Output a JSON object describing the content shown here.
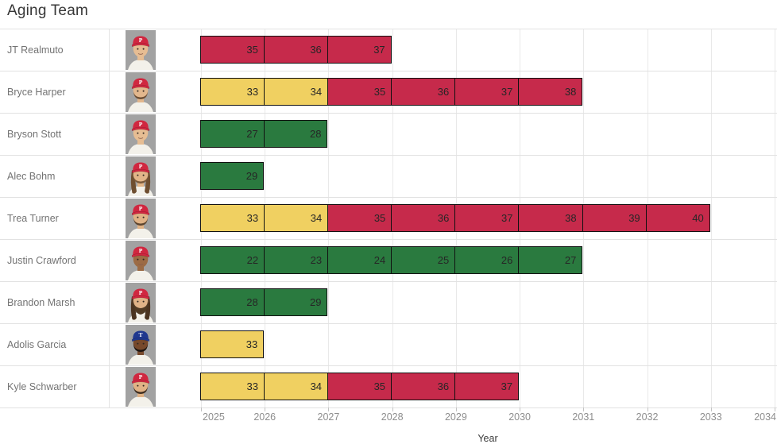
{
  "title": "Aging Team",
  "axis": {
    "label": "Year",
    "years": [
      2025,
      2026,
      2027,
      2028,
      2029,
      2030,
      2031,
      2032,
      2033,
      2034
    ]
  },
  "colors": {
    "red": "#c62a4b",
    "yellow": "#f0d061",
    "green": "#2a7a3f",
    "bar_border": "#111111",
    "grid": "#e9e9e9",
    "title_text": "#373737",
    "label_text": "#737373",
    "axis_text": "#8e8e8e"
  },
  "chart_data": {
    "type": "bar",
    "variant": "gantt",
    "title": "Aging Team",
    "xlabel": "Year",
    "ylabel": "",
    "x_range": [
      2025,
      2034
    ],
    "x_ticks": [
      2025,
      2026,
      2027,
      2028,
      2029,
      2030,
      2031,
      2032,
      2033,
      2034
    ],
    "grid": true,
    "bar_colors": {
      "green": "#2a7a3f",
      "yellow": "#f0d061",
      "red": "#c62a4b"
    },
    "players": [
      {
        "name": "JT Realmuto",
        "start_year": 2025,
        "end_year": 2028,
        "ages": [
          35,
          36,
          37
        ],
        "segment_colors": [
          "red",
          "red",
          "red"
        ],
        "avatar": {
          "cap": "#d02740",
          "letter": "P",
          "skin": "#e6bd93",
          "hair": "#4f3b28",
          "beard": null,
          "longHair": false,
          "bigBeard": false
        }
      },
      {
        "name": "Bryce Harper",
        "start_year": 2025,
        "end_year": 2031,
        "ages": [
          33,
          34,
          35,
          36,
          37,
          38
        ],
        "segment_colors": [
          "yellow",
          "yellow",
          "red",
          "red",
          "red",
          "red"
        ],
        "avatar": {
          "cap": "#d02740",
          "letter": "P",
          "skin": "#e2b78d",
          "hair": "#5a4530",
          "beard": "#6e4f35",
          "longHair": false,
          "bigBeard": false
        }
      },
      {
        "name": "Bryson Stott",
        "start_year": 2025,
        "end_year": 2027,
        "ages": [
          27,
          28
        ],
        "segment_colors": [
          "green",
          "green"
        ],
        "avatar": {
          "cap": "#d02740",
          "letter": "P",
          "skin": "#e6bd93",
          "hair": "#6b4f33",
          "beard": null,
          "longHair": false,
          "bigBeard": false
        }
      },
      {
        "name": "Alec Bohm",
        "start_year": 2025,
        "end_year": 2026,
        "ages": [
          29
        ],
        "segment_colors": [
          "green"
        ],
        "avatar": {
          "cap": "#d02740",
          "letter": "P",
          "skin": "#e2b588",
          "hair": "#6e4e30",
          "beard": "#7a5a3c",
          "longHair": true,
          "bigBeard": false
        }
      },
      {
        "name": "Trea Turner",
        "start_year": 2025,
        "end_year": 2033,
        "ages": [
          33,
          34,
          35,
          36,
          37,
          38,
          39,
          40
        ],
        "segment_colors": [
          "yellow",
          "yellow",
          "red",
          "red",
          "red",
          "red",
          "red",
          "red"
        ],
        "avatar": {
          "cap": "#d02740",
          "letter": "P",
          "skin": "#e0b285",
          "hair": "#4f3b28",
          "beard": "#5d452f",
          "longHair": false,
          "bigBeard": false
        }
      },
      {
        "name": "Justin Crawford",
        "start_year": 2025,
        "end_year": 2031,
        "ages": [
          22,
          23,
          24,
          25,
          26,
          27
        ],
        "segment_colors": [
          "green",
          "green",
          "green",
          "green",
          "green",
          "green"
        ],
        "avatar": {
          "cap": "#d02740",
          "letter": "P",
          "skin": "#9c6b44",
          "hair": "#1e1510",
          "beard": null,
          "longHair": false,
          "bigBeard": false
        }
      },
      {
        "name": "Brandon Marsh",
        "start_year": 2025,
        "end_year": 2027,
        "ages": [
          28,
          29
        ],
        "segment_colors": [
          "green",
          "green"
        ],
        "avatar": {
          "cap": "#d02740",
          "letter": "P",
          "skin": "#dfb287",
          "hair": "#4a3320",
          "beard": "#503a24",
          "longHair": true,
          "bigBeard": true
        }
      },
      {
        "name": "Adolis Garcia",
        "start_year": 2025,
        "end_year": 2026,
        "ages": [
          33
        ],
        "segment_colors": [
          "yellow"
        ],
        "avatar": {
          "cap": "#20388f",
          "letter": "T",
          "skin": "#77492c",
          "hair": "#141010",
          "beard": "#1c1410",
          "longHair": false,
          "bigBeard": false
        }
      },
      {
        "name": "Kyle Schwarber",
        "start_year": 2025,
        "end_year": 2030,
        "ages": [
          33,
          34,
          35,
          36,
          37
        ],
        "segment_colors": [
          "yellow",
          "yellow",
          "red",
          "red",
          "red"
        ],
        "avatar": {
          "cap": "#d02740",
          "letter": "P",
          "skin": "#e0b285",
          "hair": "#2f2318",
          "beard": "#3f2e20",
          "longHair": false,
          "bigBeard": false
        }
      }
    ]
  }
}
